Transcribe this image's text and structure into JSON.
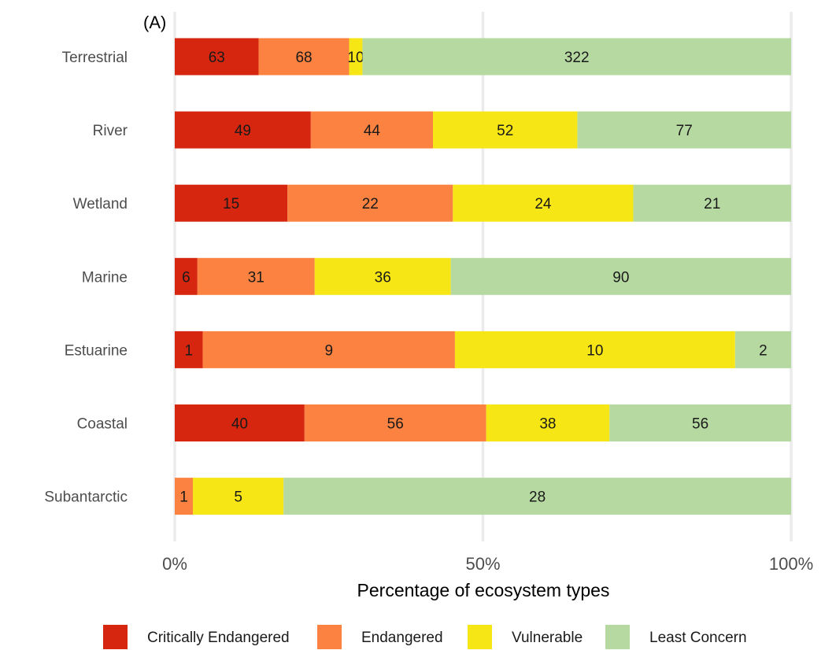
{
  "chart_data": {
    "type": "bar",
    "orientation": "horizontal",
    "stacked": "percent",
    "panel_tag": "(A)",
    "categories": [
      "Terrestrial",
      "River",
      "Wetland",
      "Marine",
      "Estuarine",
      "Coastal",
      "Subantarctic"
    ],
    "series": [
      {
        "name": "Critically Endangered",
        "color": "#d7260f",
        "values": [
          63,
          49,
          15,
          6,
          1,
          40,
          0
        ]
      },
      {
        "name": "Endangered",
        "color": "#fb8240",
        "values": [
          68,
          44,
          22,
          31,
          9,
          56,
          1
        ]
      },
      {
        "name": "Vulnerable",
        "color": "#f7e615",
        "values": [
          10,
          52,
          24,
          36,
          10,
          38,
          5
        ]
      },
      {
        "name": "Least Concern",
        "color": "#b6d9a2",
        "values": [
          322,
          77,
          21,
          90,
          2,
          56,
          28
        ]
      }
    ],
    "xlabel": "Percentage of ecosystem types",
    "ylabel": "",
    "xlim": [
      0,
      100
    ],
    "x_ticks": [
      0,
      50,
      100
    ],
    "x_tick_labels": [
      "0%",
      "50%",
      "100%"
    ],
    "grid": true,
    "legend_position": "bottom"
  }
}
